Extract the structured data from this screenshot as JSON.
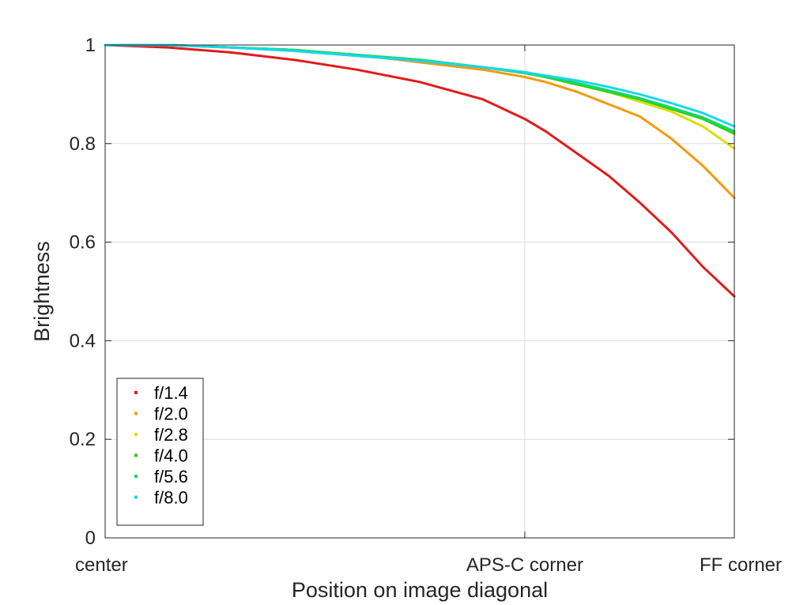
{
  "chart_data": {
    "type": "line",
    "title": "",
    "xlabel": "Position on image diagonal",
    "ylabel": "Brightness",
    "x_ticks": [
      {
        "value": 0,
        "label": "center"
      },
      {
        "value": 0.667,
        "label": "APS-C corner"
      },
      {
        "value": 1,
        "label": "FF corner"
      }
    ],
    "y_ticks": [
      {
        "value": 0,
        "label": "0"
      },
      {
        "value": 0.2,
        "label": "0.2"
      },
      {
        "value": 0.4,
        "label": "0.4"
      },
      {
        "value": 0.6,
        "label": "0.6"
      },
      {
        "value": 0.8,
        "label": "0.8"
      },
      {
        "value": 1,
        "label": "1"
      }
    ],
    "xlim": [
      0,
      1
    ],
    "ylim": [
      0,
      1
    ],
    "grid": true,
    "legend_position": "bottom-left",
    "series": [
      {
        "name": "f/1.4",
        "color": "#e41a1a",
        "x": [
          0,
          0.1,
          0.2,
          0.3,
          0.4,
          0.5,
          0.6,
          0.667,
          0.7,
          0.75,
          0.8,
          0.85,
          0.9,
          0.95,
          1.0
        ],
        "y": [
          1.0,
          0.995,
          0.985,
          0.97,
          0.95,
          0.925,
          0.89,
          0.85,
          0.825,
          0.78,
          0.735,
          0.68,
          0.62,
          0.55,
          0.49
        ]
      },
      {
        "name": "f/2.0",
        "color": "#f59a0b",
        "x": [
          0,
          0.1,
          0.2,
          0.3,
          0.4,
          0.5,
          0.6,
          0.667,
          0.7,
          0.75,
          0.8,
          0.85,
          0.9,
          0.95,
          1.0
        ],
        "y": [
          1.0,
          1.0,
          0.995,
          0.99,
          0.98,
          0.965,
          0.95,
          0.935,
          0.925,
          0.905,
          0.88,
          0.855,
          0.81,
          0.755,
          0.69
        ]
      },
      {
        "name": "f/2.8",
        "color": "#d8e000",
        "x": [
          0,
          0.1,
          0.2,
          0.3,
          0.4,
          0.5,
          0.6,
          0.667,
          0.7,
          0.75,
          0.8,
          0.85,
          0.9,
          0.95,
          1.0
        ],
        "y": [
          1.0,
          1.0,
          0.995,
          0.99,
          0.98,
          0.97,
          0.955,
          0.945,
          0.935,
          0.92,
          0.905,
          0.885,
          0.865,
          0.835,
          0.79
        ]
      },
      {
        "name": "f/4.0",
        "color": "#33cc11",
        "x": [
          0,
          0.1,
          0.2,
          0.3,
          0.4,
          0.5,
          0.6,
          0.667,
          0.7,
          0.75,
          0.8,
          0.85,
          0.9,
          0.95,
          1.0
        ],
        "y": [
          1.0,
          1.0,
          0.995,
          0.99,
          0.98,
          0.97,
          0.955,
          0.943,
          0.935,
          0.92,
          0.905,
          0.89,
          0.87,
          0.85,
          0.82
        ]
      },
      {
        "name": "f/5.6",
        "color": "#12d96b",
        "x": [
          0,
          0.1,
          0.2,
          0.3,
          0.4,
          0.5,
          0.6,
          0.667,
          0.7,
          0.75,
          0.8,
          0.85,
          0.9,
          0.95,
          1.0
        ],
        "y": [
          1.0,
          1.0,
          0.995,
          0.99,
          0.98,
          0.97,
          0.955,
          0.943,
          0.936,
          0.923,
          0.908,
          0.892,
          0.873,
          0.853,
          0.825
        ]
      },
      {
        "name": "f/8.0",
        "color": "#1ad6ea",
        "x": [
          0,
          0.1,
          0.2,
          0.3,
          0.4,
          0.5,
          0.6,
          0.667,
          0.7,
          0.75,
          0.8,
          0.85,
          0.9,
          0.95,
          1.0
        ],
        "y": [
          1.0,
          1.0,
          0.995,
          0.988,
          0.978,
          0.968,
          0.955,
          0.945,
          0.938,
          0.928,
          0.915,
          0.9,
          0.882,
          0.862,
          0.835
        ]
      }
    ]
  }
}
